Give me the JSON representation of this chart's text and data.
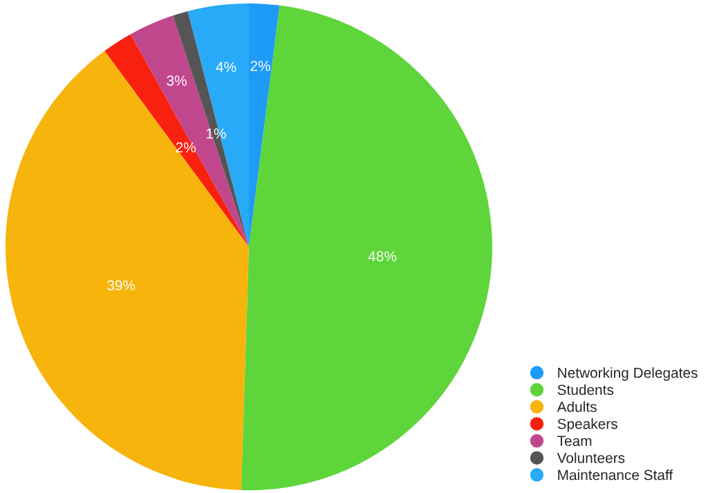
{
  "chart_data": {
    "type": "pie",
    "categories": [
      "Networking Delegates",
      "Students",
      "Adults",
      "Speakers",
      "Team",
      "Volunteers",
      "Maintenance Staff"
    ],
    "values": [
      2,
      48,
      39,
      2,
      3,
      1,
      4
    ],
    "value_labels": [
      "2%",
      "48%",
      "39%",
      "2%",
      "3%",
      "1%",
      "4%"
    ],
    "colors": [
      "#1e9bf7",
      "#5ed53a",
      "#f6b40c",
      "#f8210f",
      "#c1478d",
      "#555555",
      "#28aaf8"
    ],
    "legend": "bottom right"
  }
}
